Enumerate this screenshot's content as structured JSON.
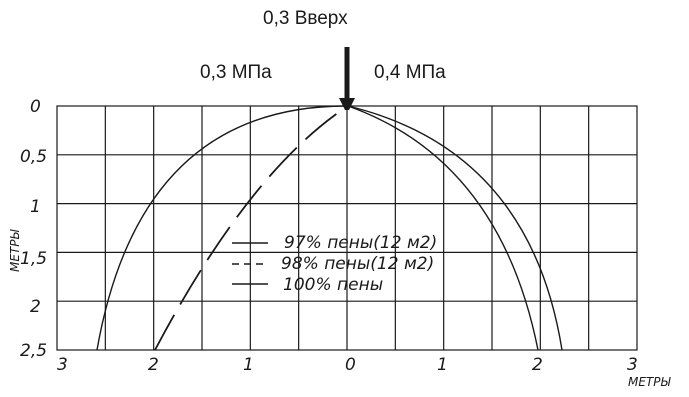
{
  "annotations": {
    "top_label": "0,3 Вверх",
    "left_pressure": "0,3 МПа",
    "right_pressure": "0,4 МПа"
  },
  "axes": {
    "y_title": "МЕТРЫ",
    "x_title": "МЕТРЫ",
    "y_ticks": [
      "0",
      "0,5",
      "1",
      "1,5",
      "2",
      "2,5"
    ],
    "x_ticks": [
      "3",
      "2",
      "1",
      "0",
      "1",
      "2",
      "3"
    ]
  },
  "legend": [
    {
      "label": "97% пены(12 м2)",
      "style": "solid"
    },
    {
      "label": "98% пены(12 м2)",
      "style": "dashed"
    },
    {
      "label": "100% пены",
      "style": "solid"
    }
  ],
  "curves": {
    "outer_left_reach_m": 2.6,
    "dashed_left_reach_m": 2.0,
    "right_reach_a_m": 1.95,
    "right_reach_b_m": 2.25,
    "depth_m": 2.5
  },
  "colors": {
    "line": "#1a1a1a",
    "grid": "#1a1a1a"
  }
}
